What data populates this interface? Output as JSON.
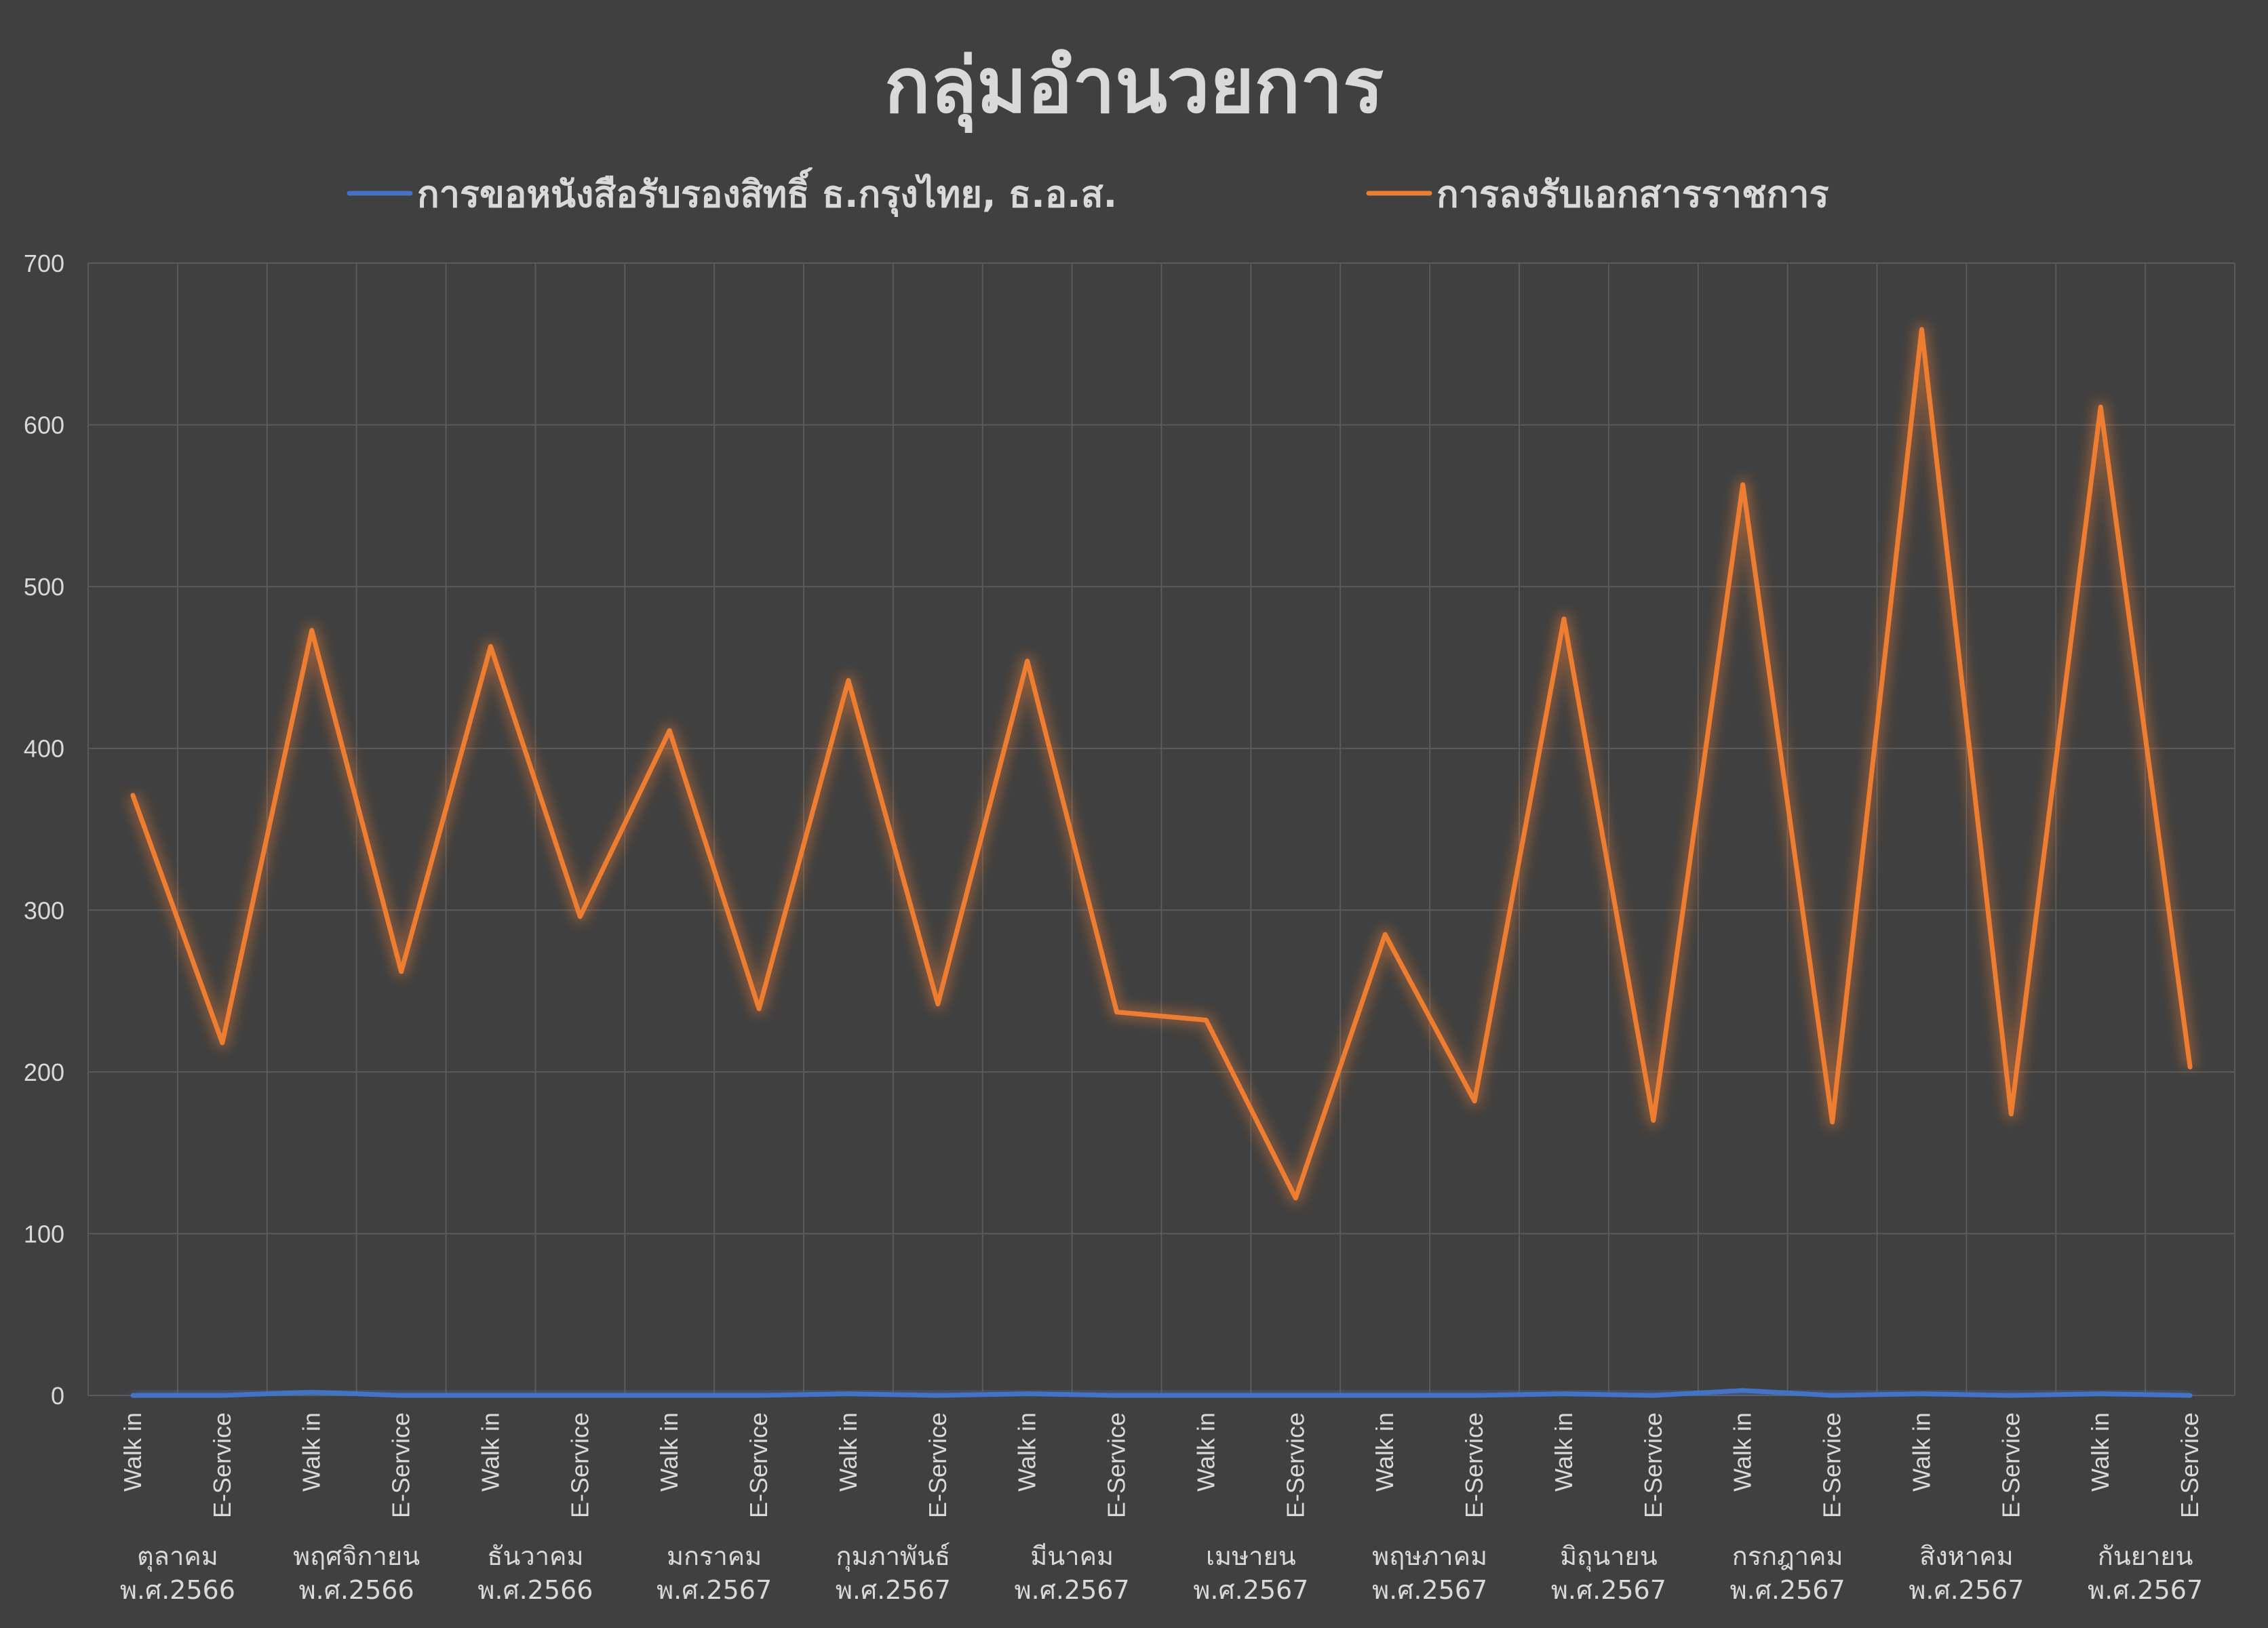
{
  "chart_data": {
    "type": "line",
    "title": "กลุ่มอำนวยการ",
    "legend_position": "top",
    "grid": true,
    "ylim": [
      0,
      700
    ],
    "yticks": [
      0,
      100,
      200,
      300,
      400,
      500,
      600,
      700
    ],
    "categories": [
      "Walk in",
      "E-Service",
      "Walk in",
      "E-Service",
      "Walk in",
      "E-Service",
      "Walk in",
      "E-Service",
      "Walk in",
      "E-Service",
      "Walk in",
      "E-Service",
      "Walk in",
      "E-Service",
      "Walk in",
      "E-Service",
      "Walk in",
      "E-Service",
      "Walk in",
      "E-Service",
      "Walk in",
      "E-Service",
      "Walk in",
      "E-Service"
    ],
    "groups": [
      {
        "month": "ตุลาคม",
        "year": "พ.ศ.2566"
      },
      {
        "month": "พฤศจิกายน",
        "year": "พ.ศ.2566"
      },
      {
        "month": "ธันวาคม",
        "year": "พ.ศ.2566"
      },
      {
        "month": "มกราคม",
        "year": "พ.ศ.2567"
      },
      {
        "month": "กุมภาพันธ์",
        "year": "พ.ศ.2567"
      },
      {
        "month": "มีนาคม",
        "year": "พ.ศ.2567"
      },
      {
        "month": "เมษายน",
        "year": "พ.ศ.2567"
      },
      {
        "month": "พฤษภาคม",
        "year": "พ.ศ.2567"
      },
      {
        "month": "มิถุนายน",
        "year": "พ.ศ.2567"
      },
      {
        "month": "กรกฎาคม",
        "year": "พ.ศ.2567"
      },
      {
        "month": "สิงหาคม",
        "year": "พ.ศ.2567"
      },
      {
        "month": "กันยายน",
        "year": "พ.ศ.2567"
      }
    ],
    "series": [
      {
        "name": "การขอหนังสือรับรองสิทธิ์ ธ.กรุงไทย, ธ.อ.ส.",
        "color": "#4472c4",
        "values": [
          0,
          0,
          2,
          0,
          0,
          0,
          0,
          0,
          1,
          0,
          1,
          0,
          0,
          0,
          0,
          0,
          1,
          0,
          3,
          0,
          1,
          0,
          1,
          0
        ]
      },
      {
        "name": "การลงรับเอกสารราชการ",
        "color": "#ed7d31",
        "values": [
          371,
          218,
          473,
          262,
          463,
          296,
          411,
          239,
          442,
          242,
          454,
          237,
          232,
          122,
          285,
          182,
          480,
          170,
          563,
          169,
          659,
          174,
          611,
          203
        ]
      }
    ]
  }
}
